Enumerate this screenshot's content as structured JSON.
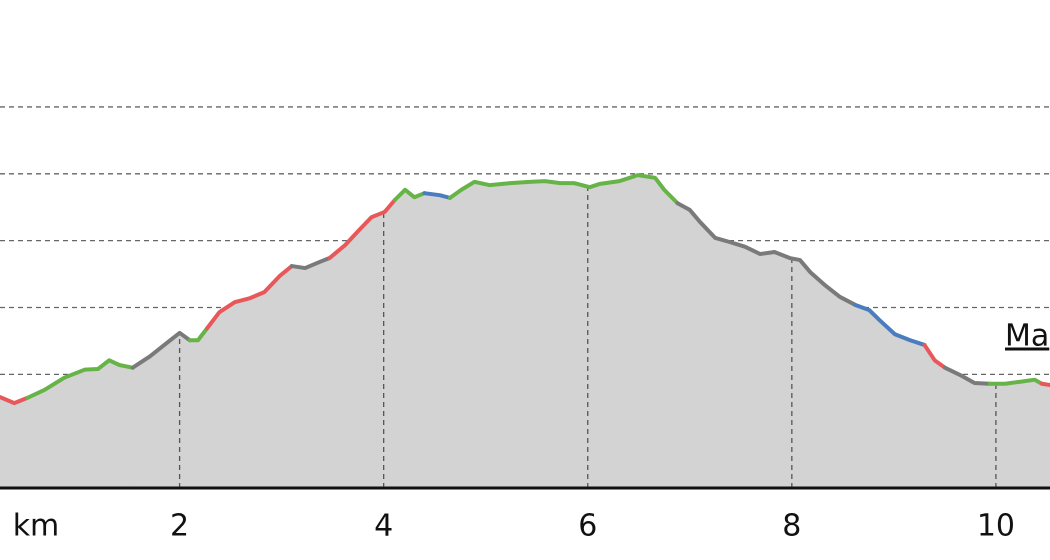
{
  "chart_data": {
    "type": "area",
    "x_label": "km",
    "annotation": "Ma",
    "fill_color": "#d3d3d3",
    "grid": true,
    "xlim": [
      0.24,
      10.53
    ],
    "xticks": [
      2,
      4,
      6,
      8,
      10
    ],
    "ylim": [
      0.3,
      7.6
    ],
    "yticks": [
      1,
      2,
      3,
      4,
      5,
      6
    ],
    "series": [
      {
        "color": "#e8585a",
        "x": [
          0.24,
          0.38,
          0.51
        ],
        "values": [
          1.66,
          1.57,
          1.65
        ]
      },
      {
        "color": "#66b447",
        "x": [
          0.51,
          0.68,
          0.87,
          1.07,
          1.2,
          1.31,
          1.41,
          1.54
        ],
        "values": [
          1.65,
          1.77,
          1.95,
          2.07,
          2.08,
          2.21,
          2.14,
          2.1
        ]
      },
      {
        "color": "#7a7a7a",
        "x": [
          1.54,
          1.71,
          1.85,
          2.0,
          2.1
        ],
        "values": [
          2.1,
          2.27,
          2.44,
          2.62,
          2.51
        ]
      },
      {
        "color": "#66b447",
        "x": [
          2.1,
          2.18,
          2.27
        ],
        "values": [
          2.51,
          2.51,
          2.69
        ]
      },
      {
        "color": "#e8585a",
        "x": [
          2.27,
          2.39,
          2.54,
          2.69,
          2.83,
          2.98,
          3.1
        ],
        "values": [
          2.69,
          2.93,
          3.08,
          3.14,
          3.23,
          3.47,
          3.62
        ]
      },
      {
        "color": "#7a7a7a",
        "x": [
          3.1,
          3.23,
          3.37,
          3.47
        ],
        "values": [
          3.62,
          3.59,
          3.68,
          3.74
        ]
      },
      {
        "color": "#e8585a",
        "x": [
          3.47,
          3.62,
          3.76,
          3.88,
          4.01,
          4.11
        ],
        "values": [
          3.74,
          3.93,
          4.16,
          4.35,
          4.43,
          4.61
        ]
      },
      {
        "color": "#66b447",
        "x": [
          4.11,
          4.21,
          4.3,
          4.4
        ],
        "values": [
          4.61,
          4.76,
          4.65,
          4.71
        ]
      },
      {
        "color": "#4a7cc0",
        "x": [
          4.4,
          4.55,
          4.65
        ],
        "values": [
          4.71,
          4.68,
          4.64
        ]
      },
      {
        "color": "#66b447",
        "x": [
          4.65,
          4.76,
          4.89,
          5.04,
          5.24,
          5.43,
          5.58,
          5.73,
          5.87,
          6.02,
          6.12,
          6.31,
          6.49,
          6.66,
          6.75,
          6.88
        ],
        "values": [
          4.64,
          4.76,
          4.88,
          4.83,
          4.86,
          4.88,
          4.89,
          4.86,
          4.86,
          4.8,
          4.85,
          4.89,
          4.98,
          4.94,
          4.76,
          4.56
        ]
      },
      {
        "color": "#7a7a7a",
        "x": [
          6.88,
          7.0,
          7.1,
          7.25,
          7.39,
          7.54,
          7.69,
          7.83,
          7.98,
          8.08,
          8.18,
          8.32,
          8.47,
          8.62
        ],
        "values": [
          4.56,
          4.46,
          4.28,
          4.04,
          3.98,
          3.91,
          3.8,
          3.83,
          3.74,
          3.71,
          3.53,
          3.34,
          3.16,
          3.04
        ]
      },
      {
        "color": "#4a7cc0",
        "x": [
          8.62,
          8.76,
          8.86,
          9.01,
          9.16,
          9.3
        ],
        "values": [
          3.04,
          2.96,
          2.81,
          2.6,
          2.51,
          2.44
        ]
      },
      {
        "color": "#e8585a",
        "x": [
          9.3,
          9.4,
          9.5
        ],
        "values": [
          2.44,
          2.21,
          2.1
        ]
      },
      {
        "color": "#7a7a7a",
        "x": [
          9.5,
          9.65,
          9.79,
          9.94
        ],
        "values": [
          2.1,
          1.99,
          1.87,
          1.86
        ]
      },
      {
        "color": "#66b447",
        "x": [
          9.94,
          10.09,
          10.24,
          10.38,
          10.45
        ],
        "values": [
          1.86,
          1.86,
          1.89,
          1.92,
          1.86
        ]
      },
      {
        "color": "#e8585a",
        "x": [
          10.45,
          10.53
        ],
        "values": [
          1.86,
          1.84
        ]
      }
    ]
  }
}
